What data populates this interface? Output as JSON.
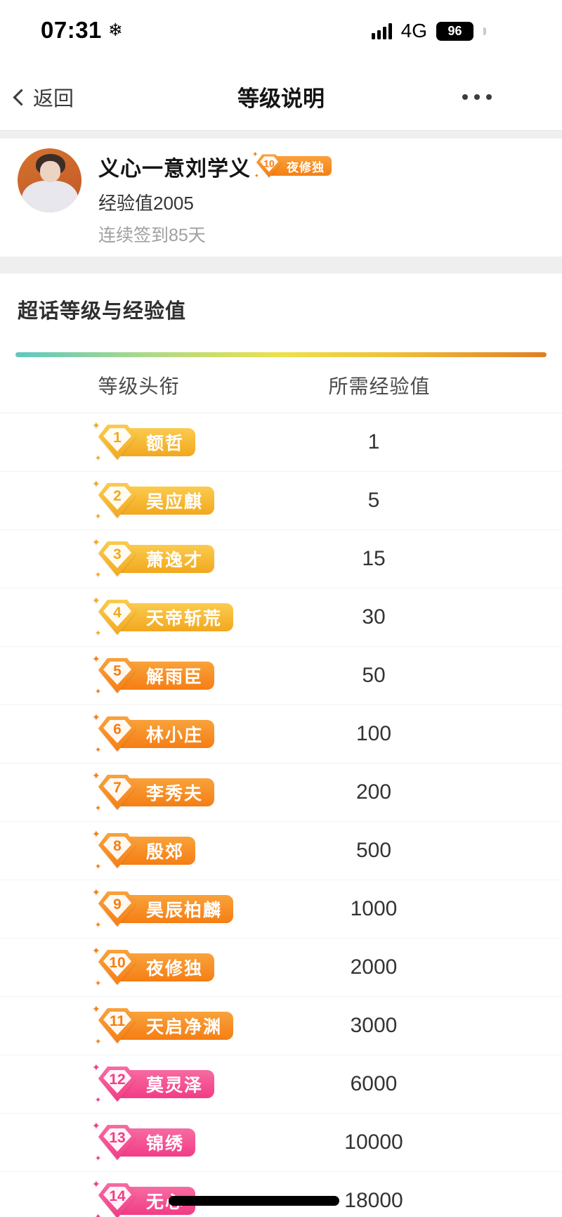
{
  "status_bar": {
    "time": "07:31",
    "weather_icon": "❄",
    "network": "4G",
    "battery_percent": "96"
  },
  "nav": {
    "back_label": "返回",
    "title": "等级说明"
  },
  "profile": {
    "name": "义心一意刘学义",
    "badge": {
      "level": "10",
      "title": "夜修独"
    },
    "exp": "经验值2005",
    "checkin": "连续签到85天"
  },
  "section": {
    "title": "超话等级与经验值"
  },
  "table": {
    "headers": {
      "level": "等级头衔",
      "exp": "所需经验值"
    },
    "rows": [
      {
        "level": "1",
        "title": "额哲",
        "exp": "1",
        "tier": "gold"
      },
      {
        "level": "2",
        "title": "吴应麒",
        "exp": "5",
        "tier": "gold"
      },
      {
        "level": "3",
        "title": "萧逸才",
        "exp": "15",
        "tier": "gold"
      },
      {
        "level": "4",
        "title": "天帝斩荒",
        "exp": "30",
        "tier": "gold"
      },
      {
        "level": "5",
        "title": "解雨臣",
        "exp": "50",
        "tier": "orange"
      },
      {
        "level": "6",
        "title": "林小庄",
        "exp": "100",
        "tier": "orange"
      },
      {
        "level": "7",
        "title": "李秀夫",
        "exp": "200",
        "tier": "orange"
      },
      {
        "level": "8",
        "title": "殷郊",
        "exp": "500",
        "tier": "orange"
      },
      {
        "level": "9",
        "title": "昊辰柏麟",
        "exp": "1000",
        "tier": "orange"
      },
      {
        "level": "10",
        "title": "夜修独",
        "exp": "2000",
        "tier": "orange"
      },
      {
        "level": "11",
        "title": "天启净渊",
        "exp": "3000",
        "tier": "orange"
      },
      {
        "level": "12",
        "title": "莫灵泽",
        "exp": "6000",
        "tier": "pink"
      },
      {
        "level": "13",
        "title": "锦绣",
        "exp": "10000",
        "tier": "pink"
      },
      {
        "level": "14",
        "title": "无心",
        "exp": "18000",
        "tier": "pink",
        "redacted": true
      }
    ]
  },
  "icons": {
    "sparkle": "✦"
  },
  "colors": {
    "gold1": "#FBCB4E",
    "gold2": "#F2A81F",
    "orange1": "#F9A23C",
    "orange2": "#F57E14",
    "pink1": "#F76BA2",
    "pink2": "#F23C86",
    "line_teal": "#5EC8C2",
    "line_green": "#A9D988",
    "line_yellow": "#EDE14B",
    "line_amber": "#EFBE39",
    "line_orange": "#E07E26",
    "redaction": "#000000"
  }
}
